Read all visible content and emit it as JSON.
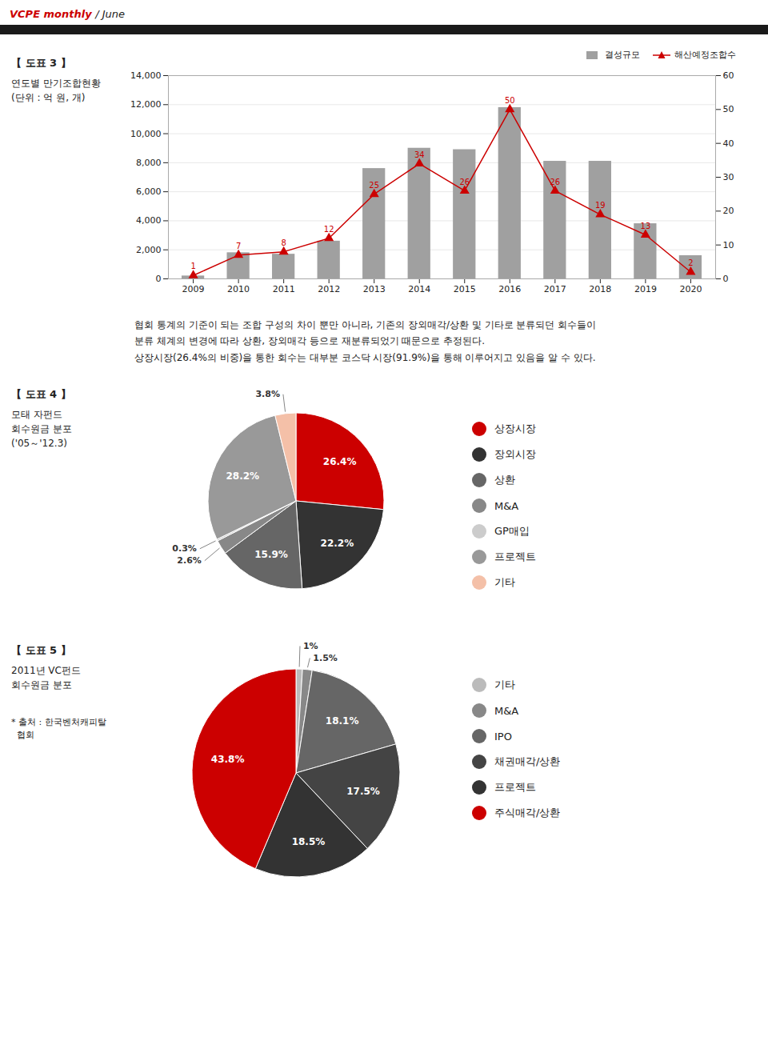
{
  "annotations": [
    "VCPE monthly ",
    "/ June",
    "협회 통계의 기준이 되는 조합 구성의 차이 뿐만 아니라, 기존의 장외매각/상환 및 기타로 분류되던 회수들이",
    "분류 체계의 변경에 따라 상환, 장외매각 등으로 재분류되었기 때문으로 추정된다.",
    "상장시장(26.4%의 비중)을 통한 회수는 대부분 코스닥 시장(91.9%)을 통해 이루어지고 있음을 알 수 있다."
  ],
  "chart_data": [
    {
      "type": "bar",
      "title": "【 도표 3 】",
      "subtitle": [
        "연도별 만기조합현황",
        "(단위 : 억 원, 개)"
      ],
      "categories": [
        "2009",
        "2010",
        "2011",
        "2012",
        "2013",
        "2014",
        "2015",
        "2016",
        "2017",
        "2018",
        "2019",
        "2020"
      ],
      "series": [
        {
          "name": "결성규모",
          "type": "bar",
          "color": "#a0a0a0",
          "values": [
            200,
            1800,
            1700,
            2600,
            7600,
            9000,
            8900,
            11800,
            8100,
            8100,
            3800,
            1600
          ]
        },
        {
          "name": "해산예정조합수",
          "type": "line",
          "axis": "y2",
          "color": "#cc0000",
          "marker": "triangle",
          "data_labels": true,
          "values": [
            1,
            7,
            8,
            12,
            25,
            34,
            26,
            50,
            26,
            19,
            13,
            2
          ]
        }
      ],
      "ylim": [
        0,
        14000
      ],
      "yticks": [
        0,
        {
          "value": 2000,
          "label": "2,000"
        },
        {
          "value": 4000,
          "label": "4,000"
        },
        {
          "value": 6000,
          "label": "6,000"
        },
        {
          "value": 8000,
          "label": "8,000"
        },
        {
          "value": 10000,
          "label": "10,000"
        },
        {
          "value": 12000,
          "label": "12,000"
        },
        {
          "value": 14000,
          "label": "14,000"
        }
      ],
      "y2lim": [
        0,
        60
      ],
      "y2ticks": [
        0,
        10,
        20,
        30,
        40,
        50,
        60
      ],
      "grid": true,
      "legend": "upper right"
    },
    {
      "type": "pie",
      "title": "【 도표 4 】",
      "subtitle": [
        "모태 자펀드",
        "회수원금 분포",
        "('05～'12.3)"
      ],
      "categories": [
        "상장시장",
        "장외시장",
        "상환",
        "M&A",
        "GP매입",
        "프로젝트",
        "기타"
      ],
      "values": [
        26.4,
        22.2,
        15.9,
        2.6,
        0.3,
        28.2,
        3.8
      ],
      "value_labels": [
        "26.4%",
        "22.2%",
        "15.9%",
        "2.6%",
        "0.3%",
        "28.2%",
        "3.8%"
      ],
      "colors": [
        "#cc0000",
        "#333333",
        "#666666",
        "#888888",
        "#cccccc",
        "#999999",
        "#f4c0a8"
      ],
      "data_labels": true,
      "legend": "right"
    },
    {
      "type": "pie",
      "title": "【 도표 5 】",
      "subtitle": [
        "2011년 VC펀드",
        "회수원금 분포"
      ],
      "annotations": [
        "* 출처 : 한국벤처캐피탈",
        "  협회"
      ],
      "categories": [
        "기타",
        "M&A",
        "IPO",
        "채권매각/상환",
        "프로젝트",
        "주식매각/상환"
      ],
      "values": [
        1.0,
        1.5,
        18.1,
        17.5,
        18.5,
        43.8
      ],
      "value_labels": [
        "1%",
        "1.5%",
        "18.1%",
        "17.5%",
        "18.5%",
        "43.8%"
      ],
      "colors": [
        "#bbbbbb",
        "#888888",
        "#666666",
        "#444444",
        "#333333",
        "#cc0000"
      ],
      "data_labels": true,
      "legend": "right"
    }
  ]
}
